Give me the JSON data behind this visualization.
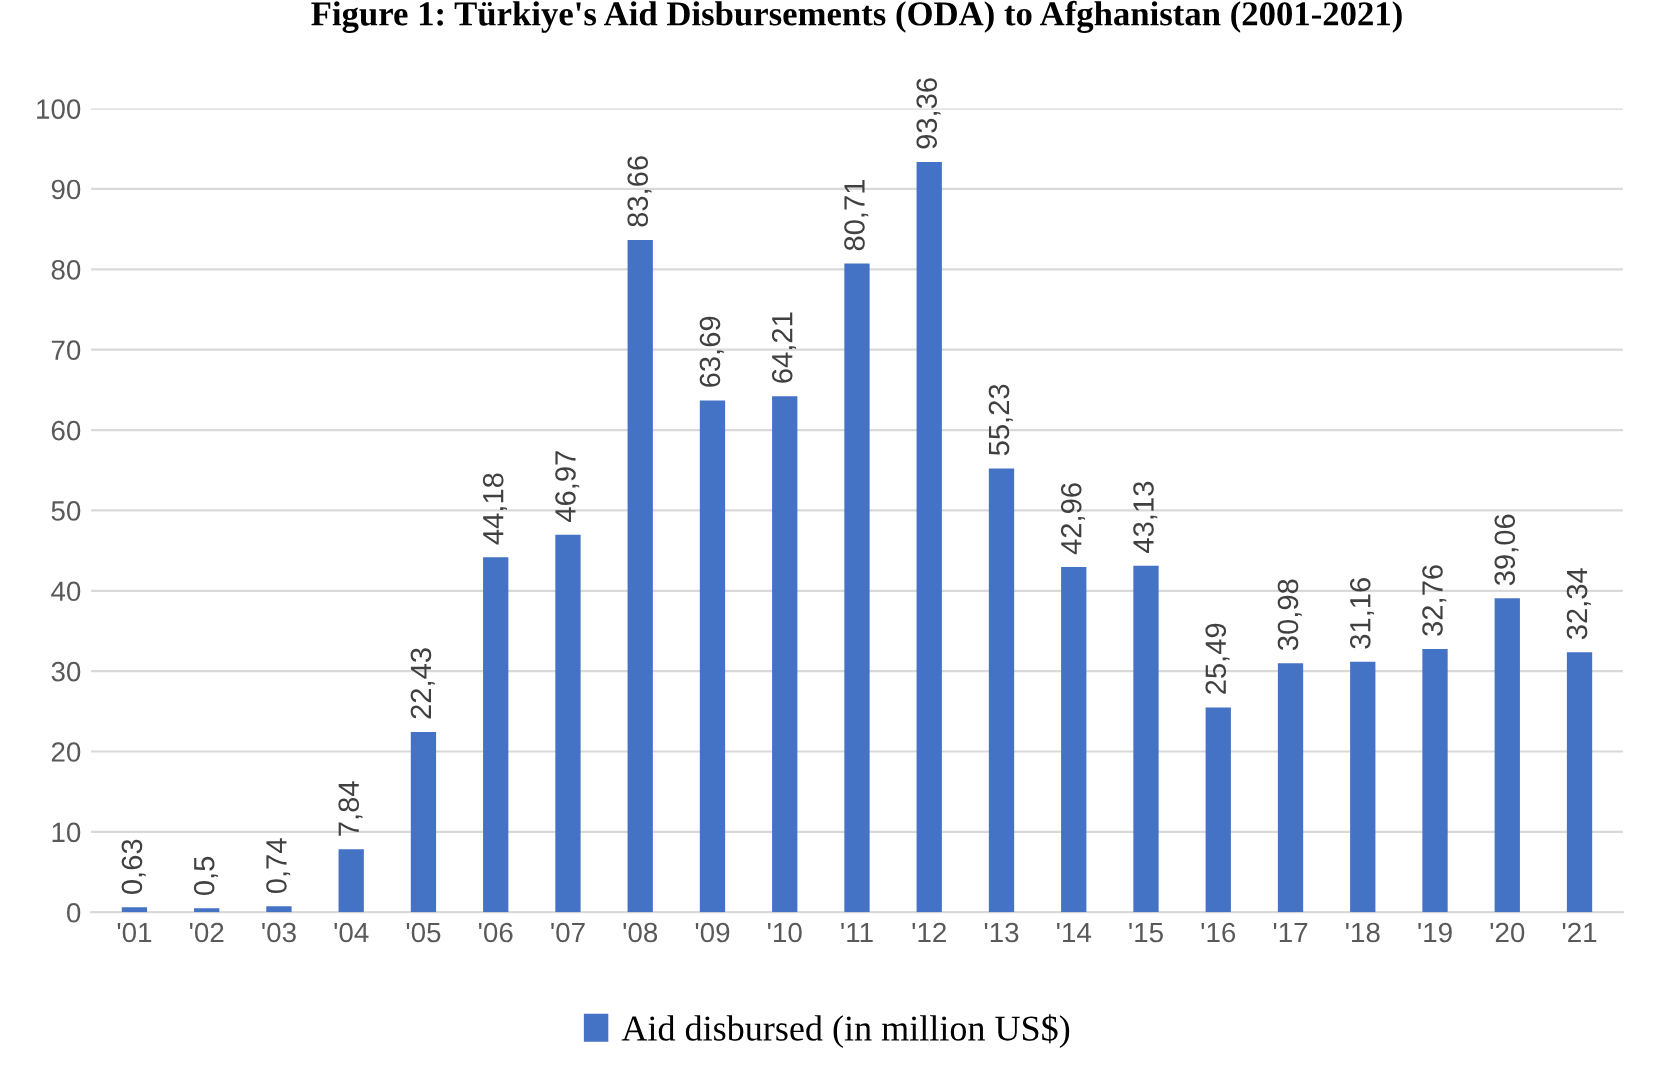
{
  "chart_data": {
    "type": "bar",
    "title": "Figure 1: Türkiye's Aid Disbursements (ODA) to Afghanistan (2001-2021)",
    "categories": [
      "'01",
      "'02",
      "'03",
      "'04",
      "'05",
      "'06",
      "'07",
      "'08",
      "'09",
      "'10",
      "'11",
      "'12",
      "'13",
      "'14",
      "'15",
      "'16",
      "'17",
      "'18",
      "'19",
      "'20",
      "'21"
    ],
    "series": [
      {
        "name": "Aid disbursed (in million US$)",
        "color": "#4472c4",
        "values": [
          0.63,
          0.5,
          0.74,
          7.84,
          22.43,
          44.18,
          46.97,
          83.66,
          63.69,
          64.21,
          80.71,
          93.36,
          55.23,
          42.96,
          43.13,
          25.49,
          30.98,
          31.16,
          32.76,
          39.06,
          32.34
        ],
        "value_labels": [
          "0,63",
          "0,5",
          "0,74",
          "7,84",
          "22,43",
          "44,18",
          "46,97",
          "83,66",
          "63,69",
          "64,21",
          "80,71",
          "93,36",
          "55,23",
          "42,96",
          "43,13",
          "25,49",
          "30,98",
          "31,16",
          "32,76",
          "39,06",
          "32,34"
        ]
      }
    ],
    "ylim": [
      0,
      100
    ],
    "yticks": [
      0,
      10,
      20,
      30,
      40,
      50,
      60,
      70,
      80,
      90,
      100
    ],
    "grid": "y",
    "legend": "bottom"
  }
}
